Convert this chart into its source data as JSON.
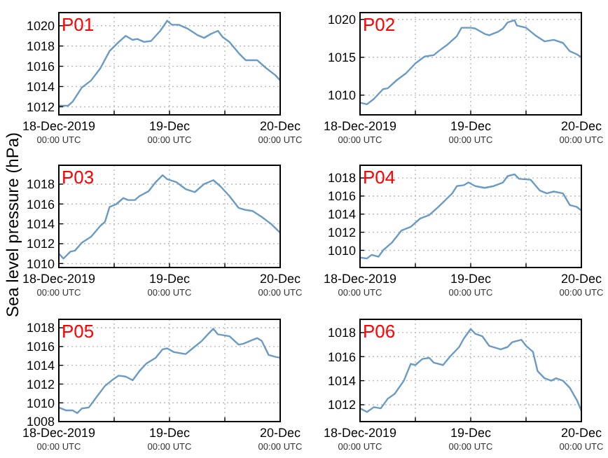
{
  "chart_data": [
    {
      "type": "line",
      "title": "P01",
      "xlim": [
        "2019-12-18T00:00",
        "2019-12-20T00:00"
      ],
      "xticks": [
        {
          "value": "2019-12-18T00:00",
          "label": "18-Dec-2019\n00:00 UTC"
        },
        {
          "value": "2019-12-18T12:00",
          "label": null
        },
        {
          "value": "2019-12-19T00:00",
          "label": "19-Dec\n00:00 UTC"
        },
        {
          "value": "2019-12-19T12:00",
          "label": null
        },
        {
          "value": "2019-12-20T00:00",
          "label": "20-Dec\n00:00 UTC"
        }
      ],
      "ylim": [
        1011.2,
        1021.3
      ],
      "yticks": [
        1012,
        1014,
        1016,
        1018,
        1020
      ],
      "grid": true,
      "marker": "none",
      "line_style": "solid",
      "series": [
        {
          "color": "#6a9ac6",
          "x": [
            "2019-12-18T00:00",
            "2019-12-18T02:00",
            "2019-12-18T03:00",
            "2019-12-18T05:00",
            "2019-12-18T07:00",
            "2019-12-18T09:00",
            "2019-12-18T11:00",
            "2019-12-18T13:00",
            "2019-12-18T14:30",
            "2019-12-18T16:00",
            "2019-12-18T17:00",
            "2019-12-18T18:30",
            "2019-12-18T20:00",
            "2019-12-18T22:00",
            "2019-12-18T23:30",
            "2019-12-19T00:30",
            "2019-12-19T02:00",
            "2019-12-19T04:00",
            "2019-12-19T06:00",
            "2019-12-19T07:30",
            "2019-12-19T09:00",
            "2019-12-19T10:30",
            "2019-12-19T11:30",
            "2019-12-19T13:00",
            "2019-12-19T15:00",
            "2019-12-19T16:30",
            "2019-12-19T19:00",
            "2019-12-19T21:00",
            "2019-12-19T23:00",
            "2019-12-20T00:00"
          ],
          "values": [
            1012.1,
            1012.1,
            1012.5,
            1013.9,
            1014.6,
            1015.8,
            1017.5,
            1018.4,
            1019.0,
            1018.6,
            1018.7,
            1018.4,
            1018.5,
            1019.5,
            1020.5,
            1020.1,
            1020.1,
            1019.7,
            1019.1,
            1018.8,
            1019.2,
            1019.5,
            1018.9,
            1018.4,
            1017.3,
            1016.6,
            1016.6,
            1015.8,
            1015.1,
            1014.6
          ]
        }
      ]
    },
    {
      "type": "line",
      "title": "P02",
      "xlim": [
        "2019-12-18T00:00",
        "2019-12-20T00:00"
      ],
      "xticks": [
        {
          "value": "2019-12-18T00:00",
          "label": "18-Dec-2019\n00:00 UTC"
        },
        {
          "value": "2019-12-18T12:00",
          "label": null
        },
        {
          "value": "2019-12-19T00:00",
          "label": "19-Dec\n00:00 UTC"
        },
        {
          "value": "2019-12-19T12:00",
          "label": null
        },
        {
          "value": "2019-12-20T00:00",
          "label": "20-Dec\n00:00 UTC"
        }
      ],
      "ylim": [
        1007.4,
        1020.9
      ],
      "yticks": [
        1010,
        1015,
        1020
      ],
      "grid": true,
      "marker": "none",
      "line_style": "solid",
      "series": [
        {
          "color": "#6a9ac6",
          "x": [
            "2019-12-18T00:00",
            "2019-12-18T01:30",
            "2019-12-18T03:00",
            "2019-12-18T05:00",
            "2019-12-18T06:00",
            "2019-12-18T08:00",
            "2019-12-18T10:00",
            "2019-12-18T12:00",
            "2019-12-18T14:00",
            "2019-12-18T16:00",
            "2019-12-18T17:00",
            "2019-12-18T19:00",
            "2019-12-18T21:00",
            "2019-12-18T22:00",
            "2019-12-19T00:00",
            "2019-12-19T01:00",
            "2019-12-19T03:00",
            "2019-12-19T04:00",
            "2019-12-19T06:00",
            "2019-12-19T07:00",
            "2019-12-19T08:00",
            "2019-12-19T09:30",
            "2019-12-19T10:00",
            "2019-12-19T12:00",
            "2019-12-19T14:00",
            "2019-12-19T16:00",
            "2019-12-19T18:00",
            "2019-12-19T20:00",
            "2019-12-19T21:30",
            "2019-12-19T23:00",
            "2019-12-20T00:00"
          ],
          "values": [
            1009.0,
            1008.8,
            1009.5,
            1010.8,
            1010.9,
            1012,
            1012.9,
            1014.2,
            1015.1,
            1015.3,
            1015.8,
            1016.7,
            1017.8,
            1018.9,
            1018.9,
            1018.8,
            1018.1,
            1017.9,
            1018.4,
            1018.8,
            1019.6,
            1019.9,
            1019.2,
            1018.9,
            1017.9,
            1017.1,
            1017.3,
            1016.9,
            1015.8,
            1015.4,
            1015
          ]
        }
      ]
    },
    {
      "type": "line",
      "title": "P03",
      "ylabel": "Sea level pressure (hPa)",
      "xlim": [
        "2019-12-18T00:00",
        "2019-12-20T00:00"
      ],
      "xticks": [
        {
          "value": "2019-12-18T00:00",
          "label": "18-Dec-2019\n00:00 UTC"
        },
        {
          "value": "2019-12-18T12:00",
          "label": null
        },
        {
          "value": "2019-12-19T00:00",
          "label": "19-Dec\n00:00 UTC"
        },
        {
          "value": "2019-12-19T12:00",
          "label": null
        },
        {
          "value": "2019-12-20T00:00",
          "label": "20-Dec\n00:00 UTC"
        }
      ],
      "ylim": [
        1009.6,
        1019.9
      ],
      "yticks": [
        1010,
        1012,
        1014,
        1016,
        1018
      ],
      "grid": true,
      "marker": "none",
      "line_style": "solid",
      "series": [
        {
          "color": "#6a9ac6",
          "x": [
            "2019-12-18T00:00",
            "2019-12-18T01:00",
            "2019-12-18T02:30",
            "2019-12-18T03:30",
            "2019-12-18T05:00",
            "2019-12-18T07:00",
            "2019-12-18T09:00",
            "2019-12-18T10:00",
            "2019-12-18T11:00",
            "2019-12-18T12:30",
            "2019-12-18T14:00",
            "2019-12-18T15:00",
            "2019-12-18T16:30",
            "2019-12-18T17:30",
            "2019-12-18T19:30",
            "2019-12-18T21:00",
            "2019-12-18T22:30",
            "2019-12-18T23:30",
            "2019-12-19T01:30",
            "2019-12-19T03:30",
            "2019-12-19T05:30",
            "2019-12-19T07:30",
            "2019-12-19T09:30",
            "2019-12-19T11:00",
            "2019-12-19T13:00",
            "2019-12-19T15:00",
            "2019-12-19T16:30",
            "2019-12-19T18:00",
            "2019-12-19T20:00",
            "2019-12-19T22:00",
            "2019-12-20T00:00"
          ],
          "values": [
            1011.0,
            1010.5,
            1011.2,
            1011.3,
            1012.1,
            1012.7,
            1013.8,
            1014.2,
            1015.7,
            1016.0,
            1016.6,
            1016.4,
            1016.4,
            1016.8,
            1017.3,
            1018.2,
            1018.9,
            1018.5,
            1018.2,
            1017.5,
            1017.2,
            1018.0,
            1018.4,
            1017.8,
            1016.8,
            1015.6,
            1015.4,
            1015.3,
            1014.7,
            1014.0,
            1013.1
          ]
        }
      ]
    },
    {
      "type": "line",
      "title": "P04",
      "xlim": [
        "2019-12-18T00:00",
        "2019-12-20T00:00"
      ],
      "xticks": [
        {
          "value": "2019-12-18T00:00",
          "label": "18-Dec-2019\n00:00 UTC"
        },
        {
          "value": "2019-12-18T12:00",
          "label": null
        },
        {
          "value": "2019-12-19T00:00",
          "label": "19-Dec\n00:00 UTC"
        },
        {
          "value": "2019-12-19T12:00",
          "label": null
        },
        {
          "value": "2019-12-20T00:00",
          "label": "20-Dec\n00:00 UTC"
        }
      ],
      "ylim": [
        1008.1,
        1019.4
      ],
      "yticks": [
        1010,
        1012,
        1014,
        1016,
        1018
      ],
      "grid": true,
      "marker": "none",
      "line_style": "solid",
      "series": [
        {
          "color": "#6a9ac6",
          "x": [
            "2019-12-18T00:00",
            "2019-12-18T01:30",
            "2019-12-18T02:30",
            "2019-12-18T04:00",
            "2019-12-18T05:00",
            "2019-12-18T07:00",
            "2019-12-18T09:00",
            "2019-12-18T11:00",
            "2019-12-18T13:00",
            "2019-12-18T15:00",
            "2019-12-18T17:00",
            "2019-12-18T19:00",
            "2019-12-18T20:00",
            "2019-12-18T21:00",
            "2019-12-18T22:30",
            "2019-12-18T23:30",
            "2019-12-19T01:00",
            "2019-12-19T03:00",
            "2019-12-19T05:00",
            "2019-12-19T07:00",
            "2019-12-19T08:00",
            "2019-12-19T09:30",
            "2019-12-19T10:30",
            "2019-12-19T13:00",
            "2019-12-19T15:00",
            "2019-12-19T16:30",
            "2019-12-19T18:00",
            "2019-12-19T20:00",
            "2019-12-19T21:30",
            "2019-12-19T23:00",
            "2019-12-20T00:00"
          ],
          "values": [
            1009.2,
            1009.1,
            1009.5,
            1009.3,
            1010.0,
            1010.9,
            1012.2,
            1012.6,
            1013.5,
            1013.9,
            1014.8,
            1015.8,
            1016.3,
            1017.1,
            1017.2,
            1017.5,
            1017.1,
            1016.9,
            1017.1,
            1017.5,
            1018.2,
            1018.4,
            1017.9,
            1017.8,
            1016.6,
            1016.3,
            1016.5,
            1016.3,
            1015.0,
            1014.8,
            1014.4
          ]
        }
      ]
    },
    {
      "type": "line",
      "title": "P05",
      "xlim": [
        "2019-12-18T00:00",
        "2019-12-20T00:00"
      ],
      "xticks": [
        {
          "value": "2019-12-18T00:00",
          "label": "18-Dec-2019\n00:00 UTC"
        },
        {
          "value": "2019-12-18T12:00",
          "label": null
        },
        {
          "value": "2019-12-19T00:00",
          "label": "19-Dec\n00:00 UTC"
        },
        {
          "value": "2019-12-19T12:00",
          "label": null
        },
        {
          "value": "2019-12-20T00:00",
          "label": "20-Dec\n00:00 UTC"
        }
      ],
      "ylim": [
        1008,
        1018.9
      ],
      "yticks": [
        1008,
        1010,
        1012,
        1014,
        1016,
        1018
      ],
      "grid": true,
      "marker": "none",
      "line_style": "solid",
      "series": [
        {
          "color": "#6a9ac6",
          "x": [
            "2019-12-18T00:00",
            "2019-12-18T01:30",
            "2019-12-18T03:00",
            "2019-12-18T04:00",
            "2019-12-18T05:00",
            "2019-12-18T06:30",
            "2019-12-18T08:00",
            "2019-12-18T10:00",
            "2019-12-18T11:30",
            "2019-12-18T13:00",
            "2019-12-18T14:30",
            "2019-12-18T16:00",
            "2019-12-18T17:30",
            "2019-12-18T19:00",
            "2019-12-18T21:00",
            "2019-12-18T22:30",
            "2019-12-18T23:30",
            "2019-12-19T01:00",
            "2019-12-19T03:30",
            "2019-12-19T05:00",
            "2019-12-19T07:00",
            "2019-12-19T08:30",
            "2019-12-19T09:30",
            "2019-12-19T10:30",
            "2019-12-19T13:00",
            "2019-12-19T15:00",
            "2019-12-19T16:00",
            "2019-12-19T18:00",
            "2019-12-19T19:00",
            "2019-12-19T20:00",
            "2019-12-19T21:30",
            "2019-12-19T23:00",
            "2019-12-20T00:00"
          ],
          "values": [
            1009.5,
            1009.2,
            1009.2,
            1008.9,
            1009.4,
            1009.5,
            1010.5,
            1011.8,
            1012.4,
            1012.9,
            1012.8,
            1012.4,
            1013.4,
            1014.2,
            1014.8,
            1015.7,
            1015.8,
            1015.4,
            1015.2,
            1015.8,
            1016.6,
            1017.4,
            1017.9,
            1017.3,
            1017.1,
            1016.2,
            1016.3,
            1016.7,
            1016.9,
            1016.6,
            1015.1,
            1014.9,
            1014.8
          ]
        }
      ]
    },
    {
      "type": "line",
      "title": "P06",
      "xlim": [
        "2019-12-18T00:00",
        "2019-12-20T00:00"
      ],
      "xticks": [
        {
          "value": "2019-12-18T00:00",
          "label": "18-Dec-2019\n00:00 UTC"
        },
        {
          "value": "2019-12-18T12:00",
          "label": null
        },
        {
          "value": "2019-12-19T00:00",
          "label": "19-Dec\n00:00 UTC"
        },
        {
          "value": "2019-12-19T12:00",
          "label": null
        },
        {
          "value": "2019-12-20T00:00",
          "label": "20-Dec\n00:00 UTC"
        }
      ],
      "ylim": [
        1010.6,
        1019.1
      ],
      "yticks": [
        1012,
        1014,
        1016,
        1018
      ],
      "grid": true,
      "marker": "none",
      "line_style": "solid",
      "series": [
        {
          "color": "#6a9ac6",
          "x": [
            "2019-12-18T00:00",
            "2019-12-18T01:30",
            "2019-12-18T03:00",
            "2019-12-18T04:30",
            "2019-12-18T06:00",
            "2019-12-18T07:30",
            "2019-12-18T09:30",
            "2019-12-18T11:00",
            "2019-12-18T12:00",
            "2019-12-18T13:30",
            "2019-12-18T15:00",
            "2019-12-18T16:00",
            "2019-12-18T18:00",
            "2019-12-18T19:30",
            "2019-12-18T21:30",
            "2019-12-18T22:30",
            "2019-12-19T00:00",
            "2019-12-19T01:00",
            "2019-12-19T02:30",
            "2019-12-19T04:00",
            "2019-12-19T06:30",
            "2019-12-19T08:00",
            "2019-12-19T09:00",
            "2019-12-19T11:00",
            "2019-12-19T12:00",
            "2019-12-19T13:30",
            "2019-12-19T14:30",
            "2019-12-19T16:00",
            "2019-12-19T17:30",
            "2019-12-19T18:30",
            "2019-12-19T20:00",
            "2019-12-19T21:30",
            "2019-12-19T23:00",
            "2019-12-20T00:00"
          ],
          "values": [
            1011.7,
            1011.4,
            1011.8,
            1011.7,
            1012.5,
            1012.9,
            1014.0,
            1015.4,
            1015.3,
            1015.8,
            1015.9,
            1015.5,
            1015.3,
            1016.0,
            1016.8,
            1017.5,
            1018.3,
            1017.9,
            1017.7,
            1016.9,
            1016.6,
            1016.8,
            1017.2,
            1017.4,
            1016.9,
            1016.4,
            1014.8,
            1014.2,
            1014.0,
            1014.2,
            1014.0,
            1013.4,
            1012.4,
            1011.5
          ]
        }
      ]
    }
  ]
}
